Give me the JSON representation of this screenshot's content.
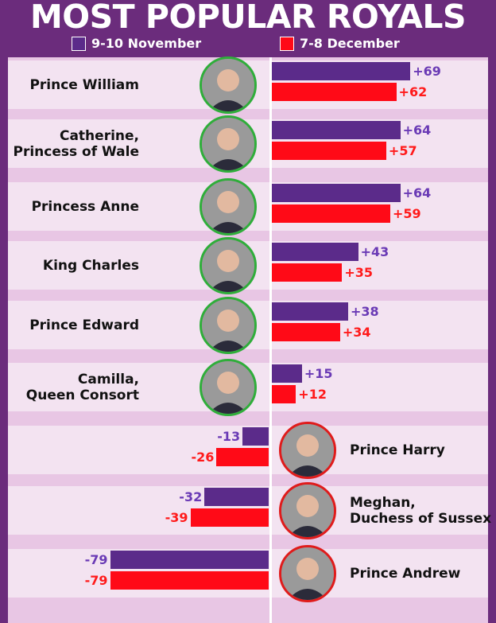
{
  "page": {
    "title": "MOST POPULAR ROYALS"
  },
  "colors": {
    "background": "#6b2c7c",
    "series_nov": "#5b2b8a",
    "series_dec": "#ff0a17",
    "label_nov": "#6a3ab5",
    "label_dec": "#ff1a1a",
    "positive_border": "#2fae3a",
    "negative_border": "#e01b1b"
  },
  "legend": [
    {
      "label": "9-10 November",
      "color": "#5b2b8a"
    },
    {
      "label": "7-8 December",
      "color": "#ff0a17"
    }
  ],
  "chart_data": {
    "type": "bar",
    "orientation": "horizontal",
    "title": "MOST POPULAR ROYALS",
    "categories": [
      "Prince William",
      "Catherine,\nPrincess of Wale",
      "Princess Anne",
      "King Charles",
      "Prince Edward",
      "Camilla,\nQueen Consort",
      "Prince Harry",
      "Meghan,\nDuchess of Sussex",
      "Prince Andrew"
    ],
    "series": [
      {
        "name": "9-10 November",
        "values": [
          69,
          64,
          64,
          43,
          38,
          15,
          -13,
          -32,
          -79
        ]
      },
      {
        "name": "7-8 December",
        "values": [
          62,
          57,
          59,
          35,
          34,
          12,
          -26,
          -39,
          -79
        ]
      }
    ],
    "value_labels": [
      [
        "+69",
        "+64",
        "+64",
        "+43",
        "+38",
        "+15",
        "-13",
        "-32",
        "-79"
      ],
      [
        "+62",
        "+57",
        "+59",
        "+35",
        "+34",
        "+12",
        "-26",
        "-39",
        "-79"
      ]
    ],
    "xlim": [
      -80,
      80
    ],
    "grid": false,
    "legend_position": "top"
  }
}
